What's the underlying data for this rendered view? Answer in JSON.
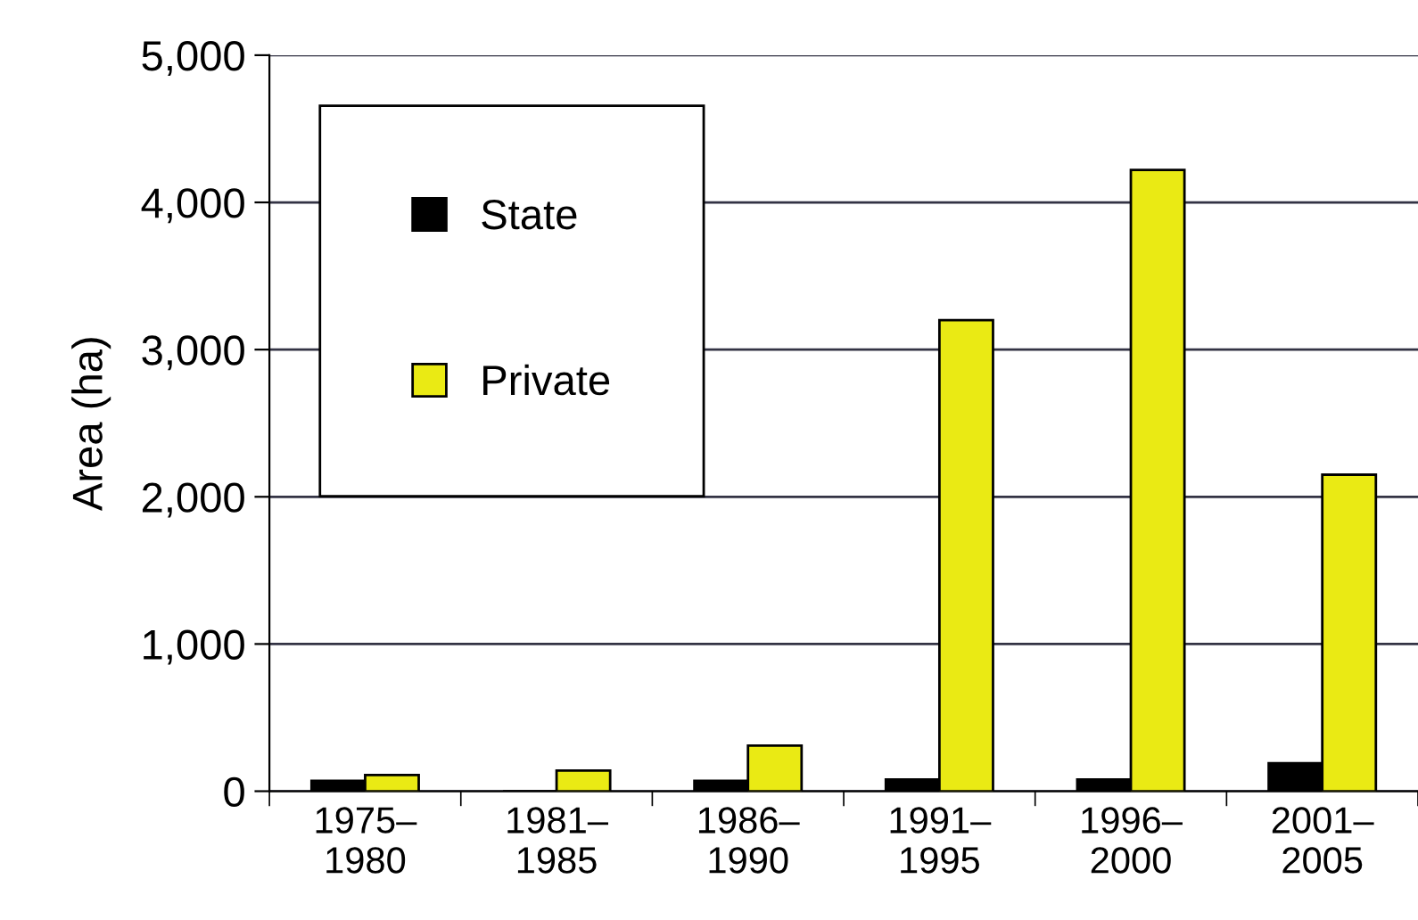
{
  "chart_data": {
    "type": "bar",
    "ylabel": "Area (ha)",
    "categories": [
      "1975–\n1980",
      "1981–\n1985",
      "1986–\n1990",
      "1991–\n1995",
      "1996–\n2000",
      "2001–\n2005"
    ],
    "series": [
      {
        "name": "State",
        "color": "#000000",
        "values": [
          70,
          0,
          70,
          80,
          80,
          190
        ]
      },
      {
        "name": "Private",
        "color": "#eaea14",
        "values": [
          110,
          140,
          310,
          3200,
          4220,
          2150
        ]
      }
    ],
    "ylim": [
      0,
      5000
    ],
    "yticks": [
      {
        "value": 0,
        "label": "0"
      },
      {
        "value": 1000,
        "label": "1,000"
      },
      {
        "value": 2000,
        "label": "2,000"
      },
      {
        "value": 3000,
        "label": "3,000"
      },
      {
        "value": 4000,
        "label": "4,000"
      },
      {
        "value": 5000,
        "label": "5,000"
      }
    ],
    "grid": "y",
    "legend": "top left"
  }
}
